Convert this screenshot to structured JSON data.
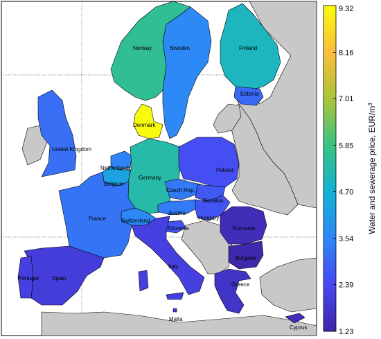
{
  "colorbar": {
    "title": "Water and sewerage price, EUR/m",
    "title_superscript": "3",
    "ticks": [
      "1.23",
      "2.39",
      "3.54",
      "4.70",
      "5.85",
      "7.01",
      "8.16",
      "9.32"
    ],
    "range": [
      1.23,
      9.32
    ],
    "colormap": [
      "#3e26a8",
      "#4748f1",
      "#2e87f7",
      "#13b2d3",
      "#3bc283",
      "#aac43a",
      "#fbbe3b",
      "#f9fb0e"
    ]
  },
  "countries": [
    {
      "name": "Norway",
      "label": "Norway",
      "price": 5.6
    },
    {
      "name": "Sweden",
      "label": "Sweden",
      "price": 3.6
    },
    {
      "name": "Finland",
      "label": "Finland",
      "price": 5.0
    },
    {
      "name": "Estonia",
      "label": "Estonia",
      "price": 3.0
    },
    {
      "name": "Denmark",
      "label": "Denmark",
      "price": 9.32
    },
    {
      "name": "United Kingdom",
      "label": "United Kingdom",
      "price": 3.1
    },
    {
      "name": "Ireland",
      "label": "",
      "price": null
    },
    {
      "name": "Netherlands",
      "label": "Netherlands",
      "price": 3.5
    },
    {
      "name": "Belgium",
      "label": "Belgium",
      "price": 4.3
    },
    {
      "name": "Germany",
      "label": "Germany",
      "price": 5.3
    },
    {
      "name": "Poland",
      "label": "Poland",
      "price": 2.5
    },
    {
      "name": "Czech Rep.",
      "label": "Czech Rep.",
      "price": 3.3
    },
    {
      "name": "Slovakia",
      "label": "Slovakia",
      "price": 2.7
    },
    {
      "name": "Austria",
      "label": "Austria",
      "price": 3.3
    },
    {
      "name": "Hungary",
      "label": "Hungary",
      "price": 2.6
    },
    {
      "name": "Switzerland",
      "label": "Switzerland",
      "price": 3.6
    },
    {
      "name": "France",
      "label": "France",
      "price": 3.2
    },
    {
      "name": "Slovenia",
      "label": "Slovenia",
      "price": 2.6
    },
    {
      "name": "Italy",
      "label": "Italy",
      "price": 2.1
    },
    {
      "name": "Romania",
      "label": "Romania",
      "price": 1.5
    },
    {
      "name": "Bulgaria",
      "label": "Bulgaria",
      "price": 1.3
    },
    {
      "name": "Greece",
      "label": "Greece",
      "price": 1.7
    },
    {
      "name": "Spain",
      "label": "Spain",
      "price": 2.0
    },
    {
      "name": "Portugal",
      "label": "Portugal",
      "price": 2.1
    },
    {
      "name": "Malta",
      "label": "Malta",
      "price": 2.0
    },
    {
      "name": "Cyprus",
      "label": "Cyprus",
      "price": 1.5
    }
  ],
  "style": {
    "no_data_color": "#c8c8c8",
    "sea_color": "#ffffff",
    "border_color": "#000000",
    "grid_color": "#000000"
  }
}
